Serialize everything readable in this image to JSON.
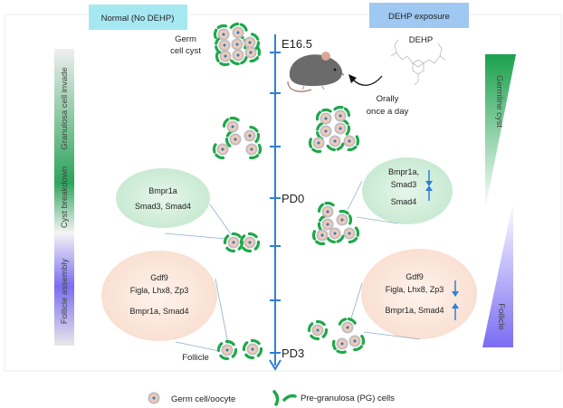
{
  "headers": {
    "normal": "Normal (No DEHP)",
    "dehp": "DEHP exposure"
  },
  "timeline": {
    "stages": [
      "E16.5",
      "PD0",
      "PD3"
    ]
  },
  "left_bar": {
    "labels": [
      "Granulosa cell invade",
      "Cyst breakdown",
      "Follicle assembly"
    ]
  },
  "right_bar": {
    "top": "Germline cyst",
    "bottom": "Follicle"
  },
  "annotations": {
    "germ_cyst_1": "Germ",
    "germ_cyst_2": "cell cyst",
    "follicle": "Follicle",
    "dehp": "DEHP",
    "orally": "Orally",
    "once": "once a day"
  },
  "normal_pd0": {
    "line1": "Bmpr1a",
    "line2": "Smad3, Smad4"
  },
  "dehp_pd0": {
    "line1": "Bmpr1a,",
    "line2": "Smad3",
    "line3": "Smad4",
    "trend_1": "down",
    "trend_2": "up"
  },
  "normal_pd3": {
    "line1": "Gdf9",
    "line2": "Figla, Lhx8, Zp3",
    "line3": "Bmpr1a, Smad4"
  },
  "dehp_pd3": {
    "line1": "Gdf9",
    "line2": "Figla, Lhx8, Zp3",
    "line3": "Bmpr1a, Smad4",
    "trend_1": "down",
    "trend_2": "up"
  },
  "legend": {
    "germ": "Germ cell/oocyte",
    "pg": "Pre-granulosa (PG) cells"
  },
  "colors": {
    "timeline": "#2f7fd6",
    "granulosa": "#1fa84a",
    "normal_header": "#a6e8f2",
    "dehp_header": "#9fc8f2",
    "green_ellipse": "#d3eedb",
    "peach_ellipse": "#fbe6da",
    "follicle_purple": "#7b6cf2"
  }
}
